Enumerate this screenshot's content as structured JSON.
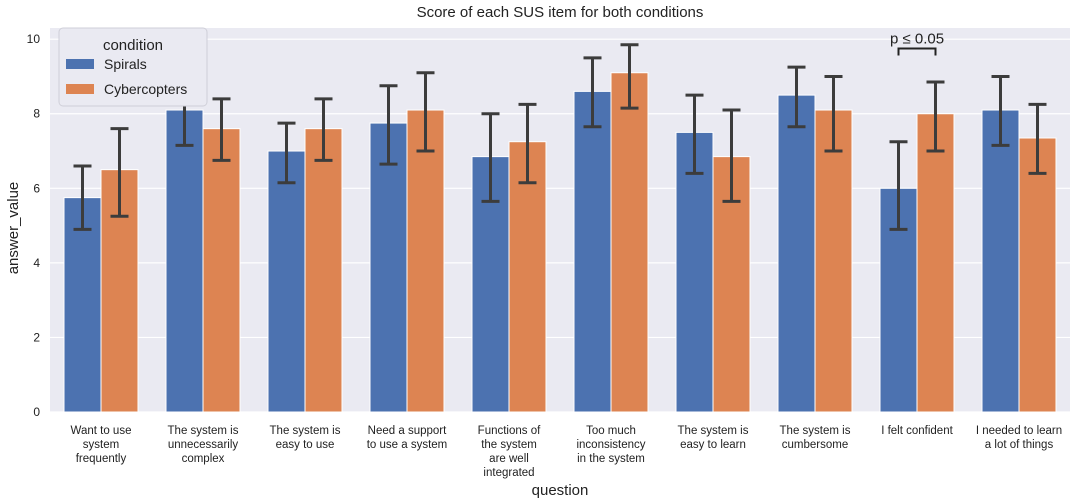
{
  "chart_data": {
    "type": "bar",
    "title": "Score of each SUS item for both conditions",
    "xlabel": "question",
    "ylabel": "answer_value",
    "ylim": [
      0,
      10.3
    ],
    "yticks": [
      0,
      2,
      4,
      6,
      8,
      10
    ],
    "grid": true,
    "legend": {
      "title": "condition",
      "placement": "top-left"
    },
    "categories": [
      [
        "Want to use",
        "system",
        "frequently"
      ],
      [
        "The system is",
        "unnecessarily",
        "complex"
      ],
      [
        "The system is",
        "easy to use"
      ],
      [
        "Need a support",
        "to use a system"
      ],
      [
        "Functions of",
        "the system",
        "are well",
        "integrated"
      ],
      [
        "Too much",
        "inconsistency",
        "in the system"
      ],
      [
        "The system is",
        "easy to learn"
      ],
      [
        "The system is",
        "cumbersome"
      ],
      [
        "I felt confident"
      ],
      [
        "I needed to learn",
        "a lot of things"
      ]
    ],
    "series": [
      {
        "name": "Spirals",
        "color": "#4C72B0",
        "values": [
          5.75,
          8.1,
          7.0,
          7.75,
          6.85,
          8.6,
          7.5,
          8.5,
          6.0,
          8.1
        ],
        "err_low": [
          4.9,
          7.15,
          6.15,
          6.65,
          5.65,
          7.65,
          6.4,
          7.65,
          4.9,
          7.15
        ],
        "err_high": [
          6.6,
          9.0,
          7.75,
          8.75,
          8.0,
          9.5,
          8.5,
          9.25,
          7.25,
          9.0
        ]
      },
      {
        "name": "Cybercopters",
        "color": "#DD8452",
        "values": [
          6.5,
          7.6,
          7.6,
          8.1,
          7.25,
          9.1,
          6.85,
          8.1,
          8.0,
          7.35
        ],
        "err_low": [
          5.25,
          6.75,
          6.75,
          7.0,
          6.15,
          8.15,
          5.65,
          7.0,
          7.0,
          6.4
        ],
        "err_high": [
          7.6,
          8.4,
          8.4,
          9.1,
          8.25,
          9.85,
          8.1,
          9.0,
          8.85,
          8.25
        ]
      }
    ],
    "annotations": [
      {
        "text": "p ≤ 0.05",
        "category_index": 8,
        "y": 9.75
      }
    ]
  }
}
